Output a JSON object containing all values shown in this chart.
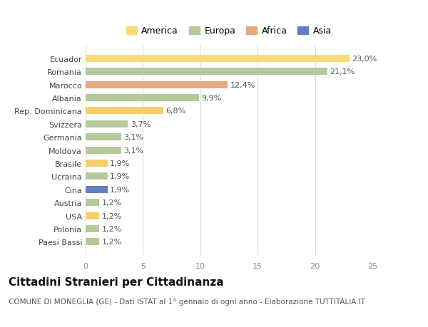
{
  "categories": [
    "Paesi Bassi",
    "Polonia",
    "USA",
    "Austria",
    "Cina",
    "Ucraina",
    "Brasile",
    "Moldova",
    "Germania",
    "Svizzera",
    "Rep. Dominicana",
    "Albania",
    "Marocco",
    "Romania",
    "Ecuador"
  ],
  "values": [
    1.2,
    1.2,
    1.2,
    1.2,
    1.9,
    1.9,
    1.9,
    3.1,
    3.1,
    3.7,
    6.8,
    9.9,
    12.4,
    21.1,
    23.0
  ],
  "labels": [
    "1,2%",
    "1,2%",
    "1,2%",
    "1,2%",
    "1,9%",
    "1,9%",
    "1,9%",
    "3,1%",
    "3,1%",
    "3,7%",
    "6,8%",
    "9,9%",
    "12,4%",
    "21,1%",
    "23,0%"
  ],
  "colors": [
    "#b5c99a",
    "#b5c99a",
    "#f7ce6b",
    "#b5c99a",
    "#6080c0",
    "#b5c99a",
    "#f7ce6b",
    "#b5c99a",
    "#b5c99a",
    "#b5c99a",
    "#f7ce6b",
    "#b5c99a",
    "#e8a882",
    "#b5c99a",
    "#fad97a"
  ],
  "legend_labels": [
    "America",
    "Europa",
    "Africa",
    "Asia"
  ],
  "legend_colors": [
    "#fad97a",
    "#b5c99a",
    "#e8a882",
    "#6080c0"
  ],
  "xlim": [
    0,
    25
  ],
  "xticks": [
    0,
    5,
    10,
    15,
    20,
    25
  ],
  "title": "Cittadini Stranieri per Cittadinanza",
  "subtitle": "COMUNE DI MONEGLIA (GE) - Dati ISTAT al 1° gennaio di ogni anno - Elaborazione TUTTITALIA.IT",
  "bg_color": "#ffffff",
  "bar_height": 0.55,
  "label_fontsize": 8,
  "ytick_fontsize": 8,
  "xtick_fontsize": 8,
  "title_fontsize": 11,
  "subtitle_fontsize": 7.5
}
